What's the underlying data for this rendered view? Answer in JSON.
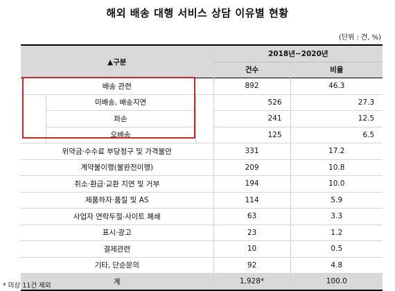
{
  "title": "해외 배송 대행 서비스 상담 이유별 현황",
  "unit": "(단위 : 건, %)",
  "header": {
    "category": "▲구분",
    "period": "2018년~2020년",
    "count": "건수",
    "ratio": "비율"
  },
  "delivery": {
    "label": "배송 관련",
    "count": "892",
    "ratio": "46.3"
  },
  "subrows": [
    {
      "label": "미배송, 배송지연",
      "count": "526",
      "ratio": "27.3"
    },
    {
      "label": "파손",
      "count": "241",
      "ratio": "12.5"
    },
    {
      "label": "오배송",
      "count": "125",
      "ratio": "6.5"
    }
  ],
  "rows": [
    {
      "label": "위약금·수수료 부당청구 및 가격불만",
      "count": "331",
      "ratio": "17.2"
    },
    {
      "label": "계약불이행(불완전이행)",
      "count": "209",
      "ratio": "10.8"
    },
    {
      "label": "취소·환급·교환 지연 및 거부",
      "count": "194",
      "ratio": "10.0"
    },
    {
      "label": "제품하자·품질 및 AS",
      "count": "114",
      "ratio": "5.9"
    },
    {
      "label": "사업자 연락두절·사이트 폐쇄",
      "count": "63",
      "ratio": "3.3"
    },
    {
      "label": "표시·광고",
      "count": "23",
      "ratio": "1.2"
    },
    {
      "label": "결제관련",
      "count": "10",
      "ratio": "0.5"
    },
    {
      "label": "기타, 단순문의",
      "count": "92",
      "ratio": "4.8"
    }
  ],
  "total": {
    "label": "계",
    "count": "1,928*",
    "ratio": "100.0"
  },
  "note": "* 미상 11건 제외",
  "colors": {
    "header_bg": "#d9d9d9",
    "highlight": "#c0282a"
  }
}
